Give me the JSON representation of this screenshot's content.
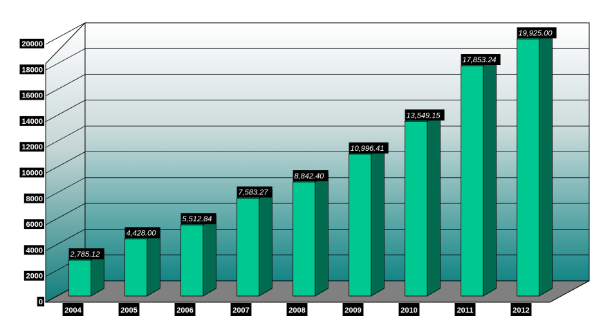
{
  "chart_data": {
    "type": "bar",
    "style": "3d-column",
    "categories": [
      "2004",
      "2005",
      "2006",
      "2007",
      "2008",
      "2009",
      "2010",
      "2011",
      "2012"
    ],
    "values": [
      2785.12,
      4428.0,
      5512.84,
      7583.27,
      8842.4,
      10996.41,
      13549.15,
      17853.24,
      19925.0
    ],
    "data_labels": [
      "2,785.12",
      "4,428.00",
      "5,512.84",
      "7,583.27",
      "8,842.40",
      "10,996.41",
      "13,549.15",
      "17,853.24",
      "19,925.00"
    ],
    "y_ticks": [
      "0",
      "2000",
      "4000",
      "6000",
      "8000",
      "10000",
      "12000",
      "14000",
      "16000",
      "18000",
      "20000"
    ],
    "ylim": [
      0,
      20000
    ],
    "grid": true,
    "legend": "none",
    "colors": {
      "bar_front": "#00c891",
      "bar_side": "#006b4e",
      "bar_top": "#00a878",
      "floor": "#808080",
      "wall_top": "#ffffff",
      "wall_bottom": "#148585",
      "label_bg": "#000000"
    }
  }
}
